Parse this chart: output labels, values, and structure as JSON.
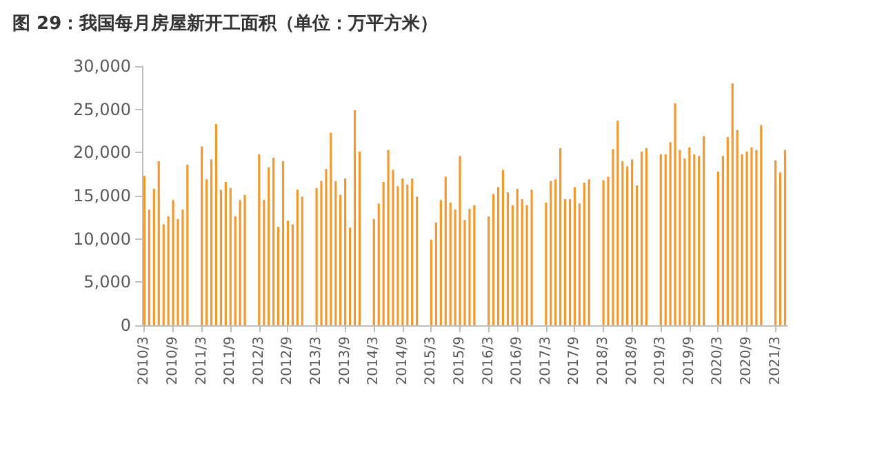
{
  "chart_data": {
    "type": "bar",
    "title": "图 29：我国每月房屋新开工面积（单位：万平方米）",
    "categories": [
      "2010/3",
      null,
      null,
      null,
      null,
      null,
      "2010/9",
      null,
      null,
      null,
      null,
      null,
      "2011/3",
      null,
      null,
      null,
      null,
      null,
      "2011/9",
      null,
      null,
      null,
      null,
      null,
      "2012/3",
      null,
      null,
      null,
      null,
      null,
      "2012/9",
      null,
      null,
      null,
      null,
      null,
      "2013/3",
      null,
      null,
      null,
      null,
      null,
      "2013/9",
      null,
      null,
      null,
      null,
      null,
      "2014/3",
      null,
      null,
      null,
      null,
      null,
      "2014/9",
      null,
      null,
      null,
      null,
      null,
      "2015/3",
      null,
      null,
      null,
      null,
      null,
      "2015/9",
      null,
      null,
      null,
      null,
      null,
      "2016/3",
      null,
      null,
      null,
      null,
      null,
      "2016/9",
      null,
      null,
      null,
      null,
      null,
      "2017/3",
      null,
      null,
      null,
      null,
      null,
      "2017/9",
      null,
      null,
      null,
      null,
      null,
      "2018/3",
      null,
      null,
      null,
      null,
      null,
      "2018/9",
      null,
      null,
      null,
      null,
      null,
      "2019/3",
      null,
      null,
      null,
      null,
      null,
      "2019/9",
      null,
      null,
      null,
      null,
      null,
      "2020/3",
      null,
      null,
      null,
      null,
      null,
      "2020/9",
      null,
      null,
      null,
      null,
      null,
      "2021/3",
      null,
      null
    ],
    "values": [
      17300,
      13400,
      15800,
      19000,
      11700,
      12600,
      14500,
      12300,
      13400,
      18600,
      null,
      null,
      20700,
      16900,
      19200,
      23300,
      15700,
      16600,
      15900,
      12600,
      14500,
      15100,
      null,
      null,
      19800,
      14500,
      18300,
      19400,
      11400,
      19000,
      12100,
      11700,
      15700,
      14900,
      null,
      null,
      15900,
      16700,
      18100,
      22300,
      16700,
      15100,
      17000,
      11300,
      24900,
      20100,
      null,
      null,
      12300,
      14100,
      16600,
      20300,
      18000,
      16100,
      17000,
      16300,
      17000,
      14900,
      null,
      null,
      9900,
      11900,
      14500,
      17200,
      14200,
      13400,
      19600,
      12200,
      13500,
      13900,
      null,
      null,
      12600,
      15200,
      16000,
      18000,
      15400,
      13900,
      15800,
      14600,
      13900,
      15700,
      null,
      null,
      14200,
      16700,
      16900,
      20500,
      14600,
      14600,
      16000,
      14100,
      16500,
      16900,
      null,
      null,
      16800,
      17200,
      20400,
      23700,
      19000,
      18400,
      19200,
      16200,
      20100,
      20500,
      null,
      null,
      19800,
      19800,
      21200,
      25700,
      20300,
      19300,
      20600,
      19800,
      19600,
      21900,
      null,
      null,
      17800,
      19600,
      21800,
      28000,
      22600,
      19800,
      20100,
      20600,
      20300,
      23200,
      null,
      null,
      19100,
      17700,
      20300
    ],
    "color": "#f39a2e",
    "ylim": [
      0,
      30000
    ],
    "yticks": [
      {
        "value": 0,
        "label": "0"
      },
      {
        "value": 5000,
        "label": "5,000"
      },
      {
        "value": 10000,
        "label": "10,000"
      },
      {
        "value": 15000,
        "label": "15,000"
      },
      {
        "value": 20000,
        "label": "20,000"
      },
      {
        "value": 25000,
        "label": "25,000"
      },
      {
        "value": 30000,
        "label": "30,000"
      }
    ],
    "grid": false
  }
}
